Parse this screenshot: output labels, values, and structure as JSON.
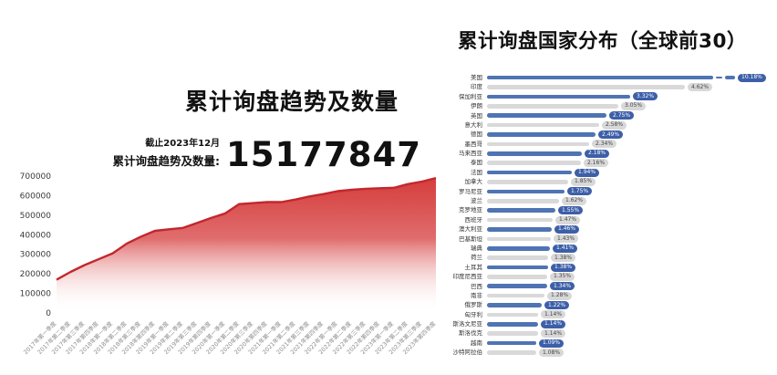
{
  "page": {
    "background": "#ffffff"
  },
  "left_chart": {
    "title": "累计询盘趋势及数量",
    "as_of": "截止2023年12月",
    "total_label": "累计询盘趋势及数量:",
    "total_value": "15177847"
  },
  "right_chart": {
    "title": "累计询盘国家分布（全球前30）"
  },
  "chart_data": [
    {
      "type": "area",
      "title": "累计询盘趋势及数量",
      "subtitle": "截止2023年12月",
      "total_label": "累计询盘趋势及数量:",
      "total": 15177847,
      "xlabel": "",
      "ylabel": "",
      "ylim": [
        0,
        700000
      ],
      "yticks": [
        0,
        100000,
        200000,
        300000,
        400000,
        500000,
        600000,
        700000
      ],
      "grid": false,
      "line_color": "#c2272d",
      "fill_top": "#d43434",
      "fill_bottom": "#ffffff",
      "x": [
        "2017年第一季度",
        "2017年第二季度",
        "2017年第三季度",
        "2017年第四季度",
        "2018年第一季度",
        "2018年第二季度",
        "2018年第三季度",
        "2018年第四季度",
        "2019年第一季度",
        "2019年第二季度",
        "2019年第三季度",
        "2019年第四季度",
        "2020年第一季度",
        "2020年第二季度",
        "2020年第三季度",
        "2020年第四季度",
        "2021年第一季度",
        "2021年第二季度",
        "2021年第三季度",
        "2021年第四季度",
        "2022年第一季度",
        "2022年第二季度",
        "2022年第三季度",
        "2022年第四季度",
        "2023年第一季度",
        "2023年第二季度",
        "2023年第三季度",
        "2023年第四季度"
      ],
      "values": [
        170000,
        210000,
        245000,
        275000,
        305000,
        355000,
        390000,
        420000,
        428000,
        435000,
        460000,
        486000,
        509000,
        557000,
        562000,
        567000,
        567000,
        580000,
        596000,
        608000,
        623000,
        630000,
        635000,
        638000,
        640000,
        659000,
        672000,
        690000
      ]
    },
    {
      "type": "bar",
      "orientation": "horizontal",
      "title": "累计询盘国家分布（全球前30）",
      "legend_position": "none",
      "axis_break_on_first_bar": true,
      "bar_color_odd_rows": "#4f74b3",
      "bar_color_even_rows": "#d9d9d9",
      "pill_color_blue": "#3d5fa8",
      "pill_color_gray": "#d8d8d8",
      "categories": [
        "美国",
        "印度",
        "保加利亚",
        "伊朗",
        "英国",
        "意大利",
        "德国",
        "墨西哥",
        "马来西亚",
        "泰国",
        "法国",
        "加拿大",
        "罗马尼亚",
        "波兰",
        "克罗地亚",
        "西班牙",
        "澳大利亚",
        "巴基斯坦",
        "瑞典",
        "荷兰",
        "土耳其",
        "印度尼西亚",
        "巴西",
        "南非",
        "俄罗斯",
        "匈牙利",
        "斯洛文尼亚",
        "斯洛伐克",
        "越南",
        "沙特阿拉伯"
      ],
      "values": [
        10.18,
        4.62,
        3.32,
        3.05,
        2.75,
        2.58,
        2.49,
        2.34,
        2.18,
        2.16,
        1.94,
        1.85,
        1.75,
        1.62,
        1.55,
        1.47,
        1.46,
        1.43,
        1.41,
        1.38,
        1.38,
        1.35,
        1.34,
        1.28,
        1.22,
        1.14,
        1.14,
        1.14,
        1.09,
        1.08
      ],
      "labels": [
        "10.18%",
        "4.62%",
        "3.32%",
        "3.05%",
        "2.75%",
        "2.58%",
        "2.49%",
        "2.34%",
        "2.18%",
        "2.16%",
        "1.94%",
        "1.85%",
        "1.75%",
        "1.62%",
        "1.55%",
        "1.47%",
        "1.46%",
        "1.43%",
        "1.41%",
        "1.38%",
        "1.38%",
        "1.35%",
        "1.34%",
        "1.28%",
        "1.22%",
        "1.14%",
        "1.14%",
        "1.14%",
        "1.09%",
        "1.08%"
      ]
    }
  ]
}
